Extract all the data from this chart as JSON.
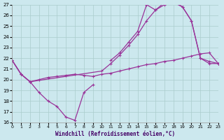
{
  "xlabel": "Windchill (Refroidissement éolien,°C)",
  "bg_color": "#cce8ee",
  "grid_color": "#aacccc",
  "line_color": "#993399",
  "xlim": [
    0,
    23
  ],
  "ylim": [
    16,
    27
  ],
  "yticks": [
    16,
    17,
    18,
    19,
    20,
    21,
    22,
    23,
    24,
    25,
    26,
    27
  ],
  "xticks": [
    0,
    1,
    2,
    3,
    4,
    5,
    6,
    7,
    8,
    9,
    10,
    11,
    12,
    13,
    14,
    15,
    16,
    17,
    18,
    19,
    20,
    21,
    22,
    23
  ],
  "series": [
    {
      "x": [
        0,
        1,
        2,
        3,
        4,
        5,
        6,
        7,
        8,
        9
      ],
      "y": [
        21.8,
        20.5,
        19.8,
        18.8,
        18.0,
        17.5,
        16.5,
        16.2,
        18.8,
        19.5
      ]
    },
    {
      "x": [
        0,
        1,
        2,
        3,
        4,
        5,
        6,
        7,
        8,
        9,
        10,
        11,
        12,
        13,
        14,
        15,
        16,
        17,
        18,
        19,
        20,
        21,
        22,
        23
      ],
      "y": [
        21.8,
        20.5,
        19.8,
        20.0,
        20.2,
        20.3,
        20.4,
        20.5,
        20.4,
        20.3,
        20.5,
        20.6,
        20.8,
        21.0,
        21.2,
        21.4,
        21.5,
        21.7,
        21.8,
        22.0,
        22.2,
        22.4,
        22.5,
        21.5
      ]
    },
    {
      "x": [
        0,
        1,
        2,
        10,
        11,
        12,
        13,
        14,
        15,
        16,
        17,
        18,
        19,
        20,
        21,
        22,
        23
      ],
      "y": [
        21.8,
        20.5,
        19.8,
        20.8,
        21.5,
        22.3,
        23.2,
        24.2,
        25.5,
        26.5,
        27.0,
        27.2,
        26.8,
        25.5,
        22.0,
        21.5,
        21.5
      ]
    },
    {
      "x": [
        11,
        12,
        13,
        14,
        15,
        16,
        17,
        18,
        19,
        20,
        21,
        22,
        23
      ],
      "y": [
        21.8,
        22.5,
        23.5,
        24.5,
        27.0,
        26.5,
        27.2,
        27.3,
        26.8,
        25.5,
        22.0,
        21.7,
        21.5
      ]
    }
  ]
}
